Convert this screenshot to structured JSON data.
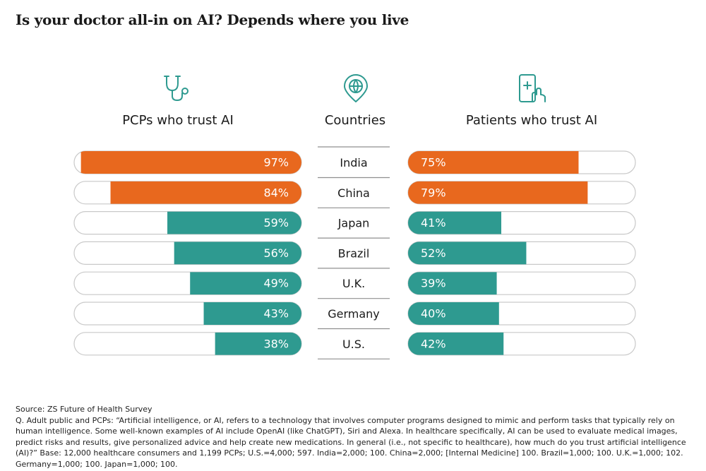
{
  "title": "Is your doctor all-in on AI? Depends where you live",
  "headers": {
    "left": "PCPs who trust AI",
    "middle": "Countries",
    "right": "Patients who trust AI"
  },
  "icons": {
    "left": "stethoscope-icon",
    "middle": "globe-location-icon",
    "right": "medical-phone-icon"
  },
  "colors": {
    "highlight": "#e8681e",
    "default": "#2e9a90",
    "track_border": "#c9c9c9",
    "divider": "#8f8f8f"
  },
  "chart_data": {
    "type": "bar",
    "categories": [
      "India",
      "China",
      "Japan",
      "Brazil",
      "U.K.",
      "Germany",
      "U.S."
    ],
    "series": [
      {
        "name": "PCPs who trust AI",
        "values": [
          97,
          84,
          59,
          56,
          49,
          43,
          38
        ],
        "labels": [
          "97%",
          "84%",
          "59%",
          "56%",
          "49%",
          "43%",
          "38%"
        ],
        "highlight": [
          true,
          true,
          false,
          false,
          false,
          false,
          false
        ]
      },
      {
        "name": "Patients who trust AI",
        "values": [
          75,
          79,
          41,
          52,
          39,
          40,
          42
        ],
        "labels": [
          "75%",
          "79%",
          "41%",
          "52%",
          "39%",
          "40%",
          "42%"
        ],
        "highlight": [
          true,
          true,
          false,
          false,
          false,
          false,
          false
        ]
      }
    ],
    "ylim": [
      0,
      100
    ],
    "title": "Is your doctor all-in on AI? Depends where you live"
  },
  "footnote": {
    "source": "Source: ZS Future of Health Survey",
    "question": "Q. Adult public and PCPs: “Artificial intelligence, or AI, refers to a technology that involves computer programs designed to mimic and perform tasks that typically rely on human intelligence. Some well-known examples of AI include OpenAI (like ChatGPT), Siri and Alexa. In healthcare specifically, AI can be used to evaluate medical images, predict risks and results, give personalized advice and help create new medications. In general (i.e., not specific to healthcare), how much do you trust artificial intelligence (AI)?” Base: 12,000 healthcare consumers and 1,199 PCPs; U.S.=4,000; 597. India=2,000; 100. China=2,000; [Internal Medicine] 100. Brazil=1,000; 100. U.K.=1,000; 102. Germany=1,000; 100. Japan=1,000; 100."
  }
}
